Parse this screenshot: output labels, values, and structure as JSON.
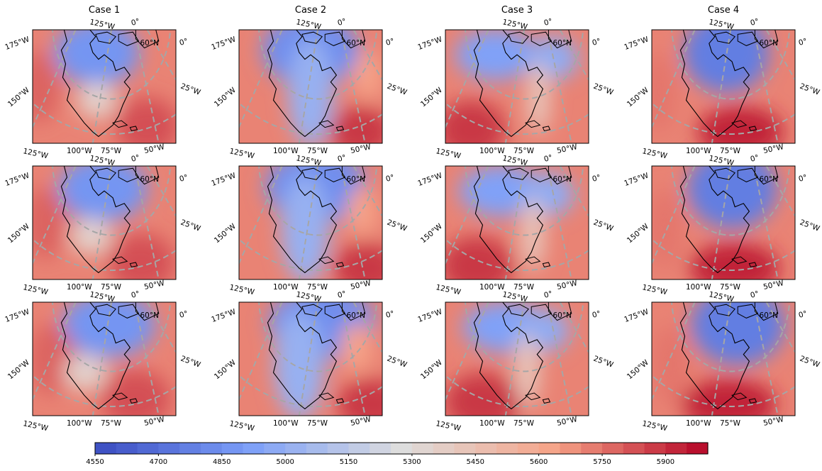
{
  "titles": [
    "Case 1",
    "Case 2",
    "Case 3",
    "Case 4"
  ],
  "rows": 3,
  "cols": 4,
  "tick_labels": {
    "left_top": "175°W",
    "left_mid": "150°W",
    "top_left": "125°W",
    "top_right": "0°",
    "inner": "60°N",
    "right_top": "0°",
    "right_mid": "25°W",
    "bottom": [
      "125°W",
      "100°W",
      "75°W",
      "50°W"
    ]
  },
  "colorbar": {
    "ticks": [
      "4550",
      "4700",
      "4850",
      "5000",
      "5150",
      "5300",
      "5450",
      "5600",
      "5750",
      "5900"
    ],
    "min": 4550,
    "max": 6000,
    "step": 50,
    "cmap": "coolwarm",
    "colors": {
      "low": "#3b4cc0",
      "mid": "#dddddd",
      "high": "#b40426"
    }
  },
  "gridline_color": "#a6a6a6",
  "coastline_color": "#000000"
}
